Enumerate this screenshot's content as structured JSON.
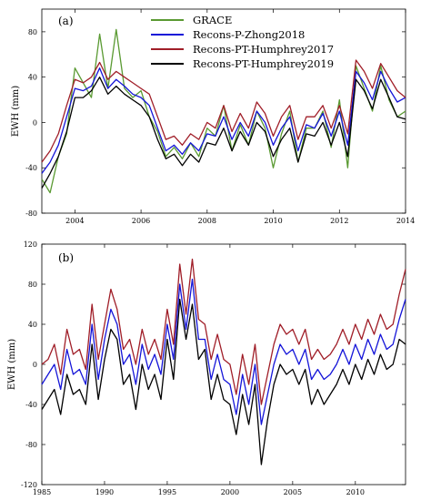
{
  "colors": {
    "GRACE": "#5a9a32",
    "Recons-P-Zhong2018": "#1414d8",
    "Recons-PT-Humphrey2017": "#a01e28",
    "Recons-PT-Humphrey2019": "#000000"
  },
  "chart_data": [
    {
      "panel": "(a)",
      "type": "line",
      "ylabel": "EWH (mm)",
      "xlim": [
        2003,
        2014
      ],
      "ylim": [
        -80,
        100
      ],
      "xticks": [
        2004,
        2006,
        2008,
        2010,
        2012,
        2014
      ],
      "yticks": [
        -80,
        -40,
        0,
        40,
        80
      ],
      "legend": "top-right",
      "x": [
        2003.0,
        2003.25,
        2003.5,
        2003.75,
        2004.0,
        2004.25,
        2004.5,
        2004.75,
        2005.0,
        2005.25,
        2005.5,
        2005.75,
        2006.0,
        2006.25,
        2006.5,
        2006.75,
        2007.0,
        2007.25,
        2007.5,
        2007.75,
        2008.0,
        2008.25,
        2008.5,
        2008.75,
        2009.0,
        2009.25,
        2009.5,
        2009.75,
        2010.0,
        2010.25,
        2010.5,
        2010.75,
        2011.0,
        2011.25,
        2011.5,
        2011.75,
        2012.0,
        2012.25,
        2012.5,
        2012.75,
        2013.0,
        2013.25,
        2013.5,
        2013.75,
        2014.0
      ],
      "series": [
        {
          "name": "GRACE",
          "values": [
            -50,
            -62,
            -30,
            -10,
            48,
            35,
            22,
            78,
            30,
            82,
            30,
            22,
            28,
            5,
            -8,
            -30,
            -22,
            -32,
            -18,
            -30,
            -5,
            -12,
            15,
            -25,
            -2,
            -20,
            10,
            -5,
            -40,
            -10,
            10,
            -35,
            -5,
            -5,
            10,
            -22,
            20,
            -40,
            50,
            30,
            10,
            50,
            20,
            5,
            10
          ]
        },
        {
          "name": "Recons-P-Zhong2018",
          "values": [
            -45,
            -35,
            -20,
            5,
            30,
            28,
            32,
            48,
            30,
            38,
            32,
            25,
            22,
            15,
            -5,
            -25,
            -20,
            -28,
            -18,
            -25,
            -10,
            -12,
            5,
            -15,
            0,
            -12,
            10,
            0,
            -20,
            -5,
            5,
            -25,
            -2,
            -5,
            8,
            -12,
            10,
            -20,
            45,
            35,
            20,
            45,
            30,
            18,
            22
          ]
        },
        {
          "name": "Recons-PT-Humphrey2017",
          "values": [
            -35,
            -25,
            -10,
            15,
            38,
            35,
            40,
            53,
            38,
            45,
            40,
            35,
            30,
            25,
            5,
            -15,
            -12,
            -20,
            -10,
            -15,
            0,
            -5,
            15,
            -8,
            8,
            -5,
            18,
            8,
            -12,
            5,
            15,
            -15,
            5,
            5,
            15,
            -5,
            15,
            -10,
            55,
            45,
            30,
            52,
            40,
            28,
            22
          ]
        },
        {
          "name": "Recons-PT-Humphrey2019",
          "values": [
            -58,
            -45,
            -30,
            -8,
            22,
            22,
            28,
            40,
            25,
            32,
            25,
            20,
            15,
            5,
            -15,
            -32,
            -28,
            -38,
            -28,
            -35,
            -18,
            -20,
            -5,
            -25,
            -8,
            -20,
            0,
            -8,
            -30,
            -15,
            -5,
            -35,
            -10,
            -12,
            0,
            -20,
            0,
            -30,
            38,
            28,
            12,
            38,
            22,
            5,
            3
          ]
        }
      ]
    },
    {
      "panel": "(b)",
      "type": "line",
      "ylabel": "EWH (mm)",
      "xlim": [
        1985,
        2014
      ],
      "ylim": [
        -120,
        120
      ],
      "xticks": [
        1985,
        1990,
        1995,
        2000,
        2005,
        2010
      ],
      "yticks": [
        -120,
        -80,
        -40,
        0,
        40,
        80,
        120
      ],
      "x": [
        1985.0,
        1985.5,
        1986.0,
        1986.5,
        1987.0,
        1987.5,
        1988.0,
        1988.5,
        1989.0,
        1989.5,
        1990.0,
        1990.5,
        1991.0,
        1991.5,
        1992.0,
        1992.5,
        1993.0,
        1993.5,
        1994.0,
        1994.5,
        1995.0,
        1995.5,
        1996.0,
        1996.5,
        1997.0,
        1997.5,
        1998.0,
        1998.5,
        1999.0,
        1999.5,
        2000.0,
        2000.5,
        2001.0,
        2001.5,
        2002.0,
        2002.5,
        2003.0,
        2003.5,
        2004.0,
        2004.5,
        2005.0,
        2005.5,
        2006.0,
        2006.5,
        2007.0,
        2007.5,
        2008.0,
        2008.5,
        2009.0,
        2009.5,
        2010.0,
        2010.5,
        2011.0,
        2011.5,
        2012.0,
        2012.5,
        2013.0,
        2013.5,
        2014.0
      ],
      "series": [
        {
          "name": "Recons-PT-Humphrey2017",
          "values": [
            0,
            5,
            20,
            -10,
            35,
            10,
            15,
            -5,
            60,
            5,
            40,
            75,
            55,
            15,
            25,
            0,
            35,
            10,
            25,
            5,
            55,
            20,
            100,
            50,
            105,
            45,
            40,
            5,
            30,
            5,
            0,
            -30,
            10,
            -20,
            20,
            -40,
            -10,
            20,
            40,
            30,
            35,
            20,
            35,
            5,
            15,
            5,
            10,
            20,
            35,
            20,
            40,
            25,
            45,
            30,
            50,
            35,
            40,
            70,
            95
          ]
        },
        {
          "name": "Recons-P-Zhong2018",
          "values": [
            -20,
            -10,
            0,
            -25,
            15,
            -10,
            -5,
            -20,
            40,
            -15,
            25,
            55,
            40,
            0,
            10,
            -20,
            20,
            -5,
            10,
            -10,
            40,
            5,
            80,
            35,
            85,
            25,
            25,
            -15,
            10,
            -15,
            -20,
            -50,
            -10,
            -40,
            0,
            -60,
            -30,
            0,
            20,
            10,
            15,
            0,
            15,
            -15,
            -5,
            -15,
            -10,
            0,
            15,
            0,
            20,
            5,
            25,
            10,
            30,
            15,
            20,
            45,
            65
          ]
        },
        {
          "name": "Recons-PT-Humphrey2019",
          "values": [
            -45,
            -35,
            -25,
            -50,
            -10,
            -30,
            -25,
            -40,
            20,
            -35,
            5,
            35,
            25,
            -20,
            -10,
            -45,
            0,
            -25,
            -10,
            -35,
            25,
            -15,
            65,
            25,
            60,
            5,
            15,
            -35,
            -10,
            -35,
            -40,
            -70,
            -30,
            -60,
            -20,
            -100,
            -55,
            -20,
            0,
            -10,
            -5,
            -20,
            -5,
            -40,
            -25,
            -40,
            -30,
            -20,
            -5,
            -20,
            0,
            -15,
            5,
            -10,
            10,
            -5,
            0,
            25,
            20
          ]
        }
      ]
    }
  ]
}
